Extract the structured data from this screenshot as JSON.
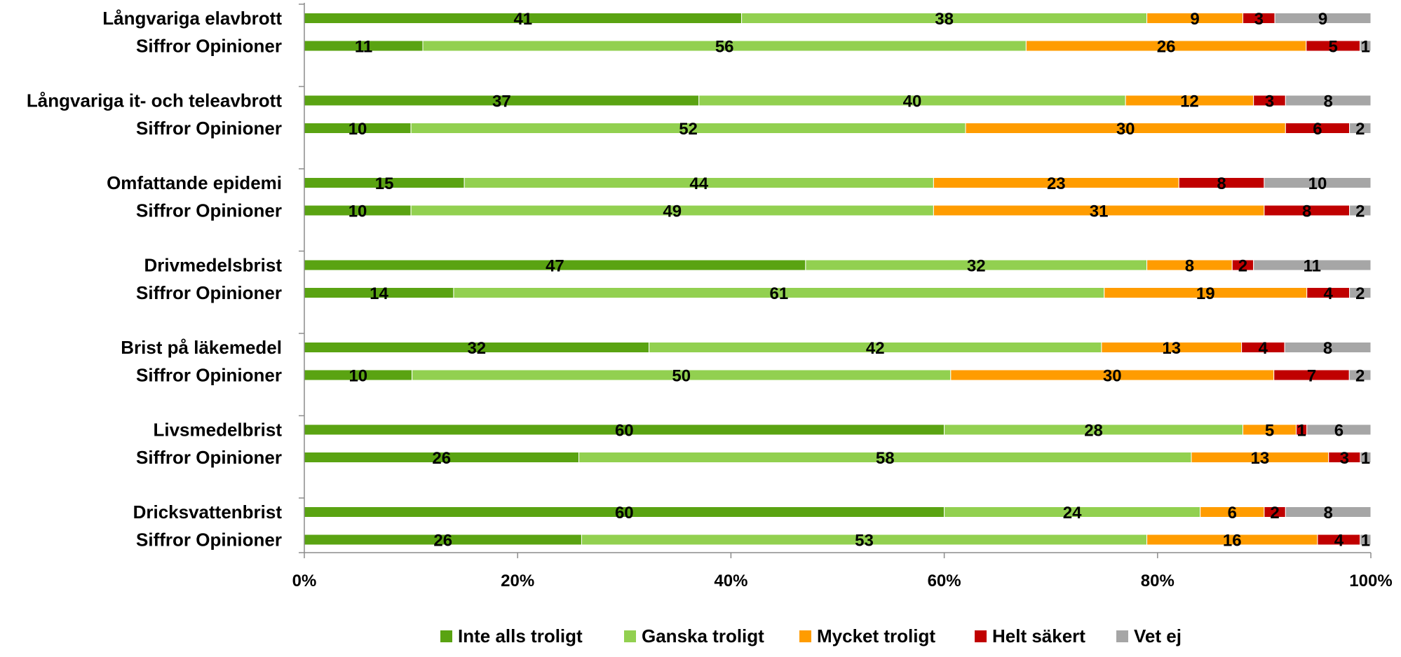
{
  "chart_data": {
    "type": "bar",
    "orientation": "horizontal",
    "stacked": "percent",
    "xlim": [
      0,
      100
    ],
    "x_ticks": [
      "0%",
      "20%",
      "40%",
      "60%",
      "80%",
      "100%"
    ],
    "categories": [
      "Långvariga elavbrott",
      "Siffror  Opinioner",
      "Långvariga it- och teleavbrott",
      "Siffror  Opinioner",
      "Omfattande epidemi",
      "Siffror  Opinioner",
      "Drivmedelsbrist",
      "Siffror  Opinioner",
      "Brist på läkemedel",
      "Siffror  Opinioner",
      "Livsmedelbrist",
      "Siffror  Opinioner",
      "Dricksvattenbrist",
      "Siffror  Opinioner"
    ],
    "series": [
      {
        "name": "Inte alls troligt",
        "color": "#5aa312",
        "values": [
          41,
          11,
          37,
          10,
          15,
          10,
          47,
          14,
          32,
          10,
          60,
          26,
          60,
          26
        ]
      },
      {
        "name": "Ganska troligt",
        "color": "#92d050",
        "values": [
          38,
          56,
          40,
          52,
          44,
          49,
          32,
          61,
          42,
          50,
          28,
          58,
          24,
          53
        ]
      },
      {
        "name": "Mycket troligt",
        "color": "#ff9c00",
        "values": [
          9,
          26,
          12,
          30,
          23,
          31,
          8,
          19,
          13,
          30,
          5,
          13,
          6,
          16
        ]
      },
      {
        "name": "Helt säkert",
        "color": "#c00000",
        "values": [
          3,
          5,
          3,
          6,
          8,
          8,
          2,
          4,
          4,
          7,
          1,
          3,
          2,
          4
        ]
      },
      {
        "name": "Vet ej",
        "color": "#a6a6a6",
        "values": [
          9,
          1,
          8,
          2,
          10,
          2,
          11,
          2,
          8,
          2,
          6,
          1,
          8,
          1
        ]
      }
    ],
    "grid": false,
    "legend": "bottom"
  }
}
